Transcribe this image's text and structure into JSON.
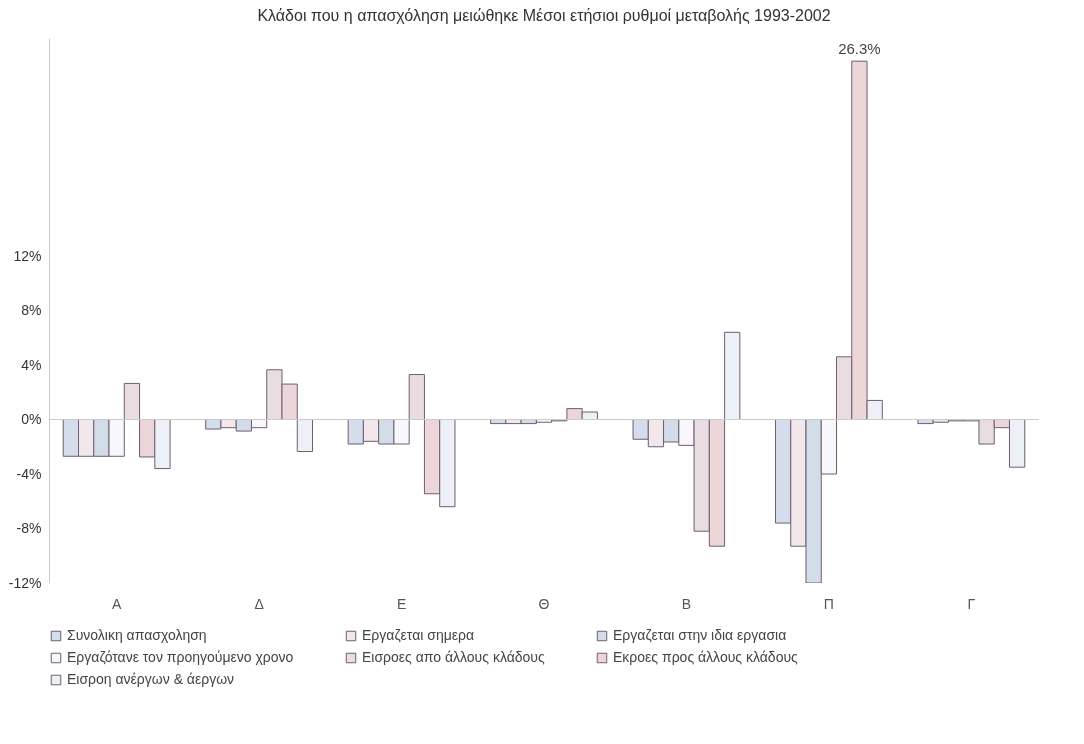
{
  "chart_data": {
    "type": "bar",
    "title": "Κλάδοι που η απασχόληση μειώθηκε Μέσοι ετήσιοι ρυθμοί μεταβολής 1993-2002",
    "categories": [
      "Α",
      "Δ",
      "Ε",
      "Θ",
      "Β",
      "Π",
      "Γ"
    ],
    "series": [
      {
        "name": "Συνολικη απασχοληση",
        "color": "#d5dcec",
        "values": [
          -2.7,
          -0.7,
          -1.8,
          -0.3,
          -1.45,
          -7.6,
          -0.3
        ]
      },
      {
        "name": "Εργαζεται σημερα",
        "color": "#f2e8ec",
        "values": [
          -2.7,
          -0.6,
          -1.6,
          -0.3,
          -2.0,
          -9.3,
          -0.2
        ]
      },
      {
        "name": "Εργαζεται στην ιδια εργασια",
        "color": "#d3dde9",
        "values": [
          -2.7,
          -0.85,
          -1.8,
          -0.3,
          -1.65,
          -12.0,
          -0.1
        ]
      },
      {
        "name": "Εργαζότανε τον προηγούμενο χρονο",
        "color": "#f8f8fc",
        "values": [
          -2.7,
          -0.6,
          -1.8,
          -0.2,
          -1.9,
          -4.0,
          -0.1
        ]
      },
      {
        "name": "Εισροες απο άλλους κλάδους",
        "color": "#e9dde2",
        "values": [
          2.65,
          3.65,
          3.3,
          -0.1,
          -8.2,
          4.6,
          -1.8
        ]
      },
      {
        "name": "Εκροες προς άλλους κλάδους",
        "color": "#ecd6da",
        "values": [
          -2.75,
          2.6,
          -5.45,
          0.8,
          -9.3,
          26.3,
          -0.6
        ],
        "value_labels": [
          null,
          null,
          null,
          null,
          null,
          "26.3%",
          null
        ]
      },
      {
        "name": "Εισροη ανέργων & άεργων",
        "color": "#eef0f8",
        "values": [
          -3.6,
          -2.35,
          -6.4,
          0.55,
          6.4,
          1.4,
          -3.5
        ]
      }
    ],
    "ylim": [
      -12,
      28
    ],
    "yticks": [
      {
        "value": -12,
        "label": "-12%"
      },
      {
        "value": -8,
        "label": "-8%"
      },
      {
        "value": -4,
        "label": "-4%"
      },
      {
        "value": 0,
        "label": "0%"
      },
      {
        "value": 4,
        "label": "4%"
      },
      {
        "value": 8,
        "label": "8%"
      },
      {
        "value": 12,
        "label": "12%"
      }
    ],
    "ref_lines": [
      {
        "axis": "y",
        "value": 0
      }
    ],
    "legend": "bottom",
    "grid": false
  }
}
